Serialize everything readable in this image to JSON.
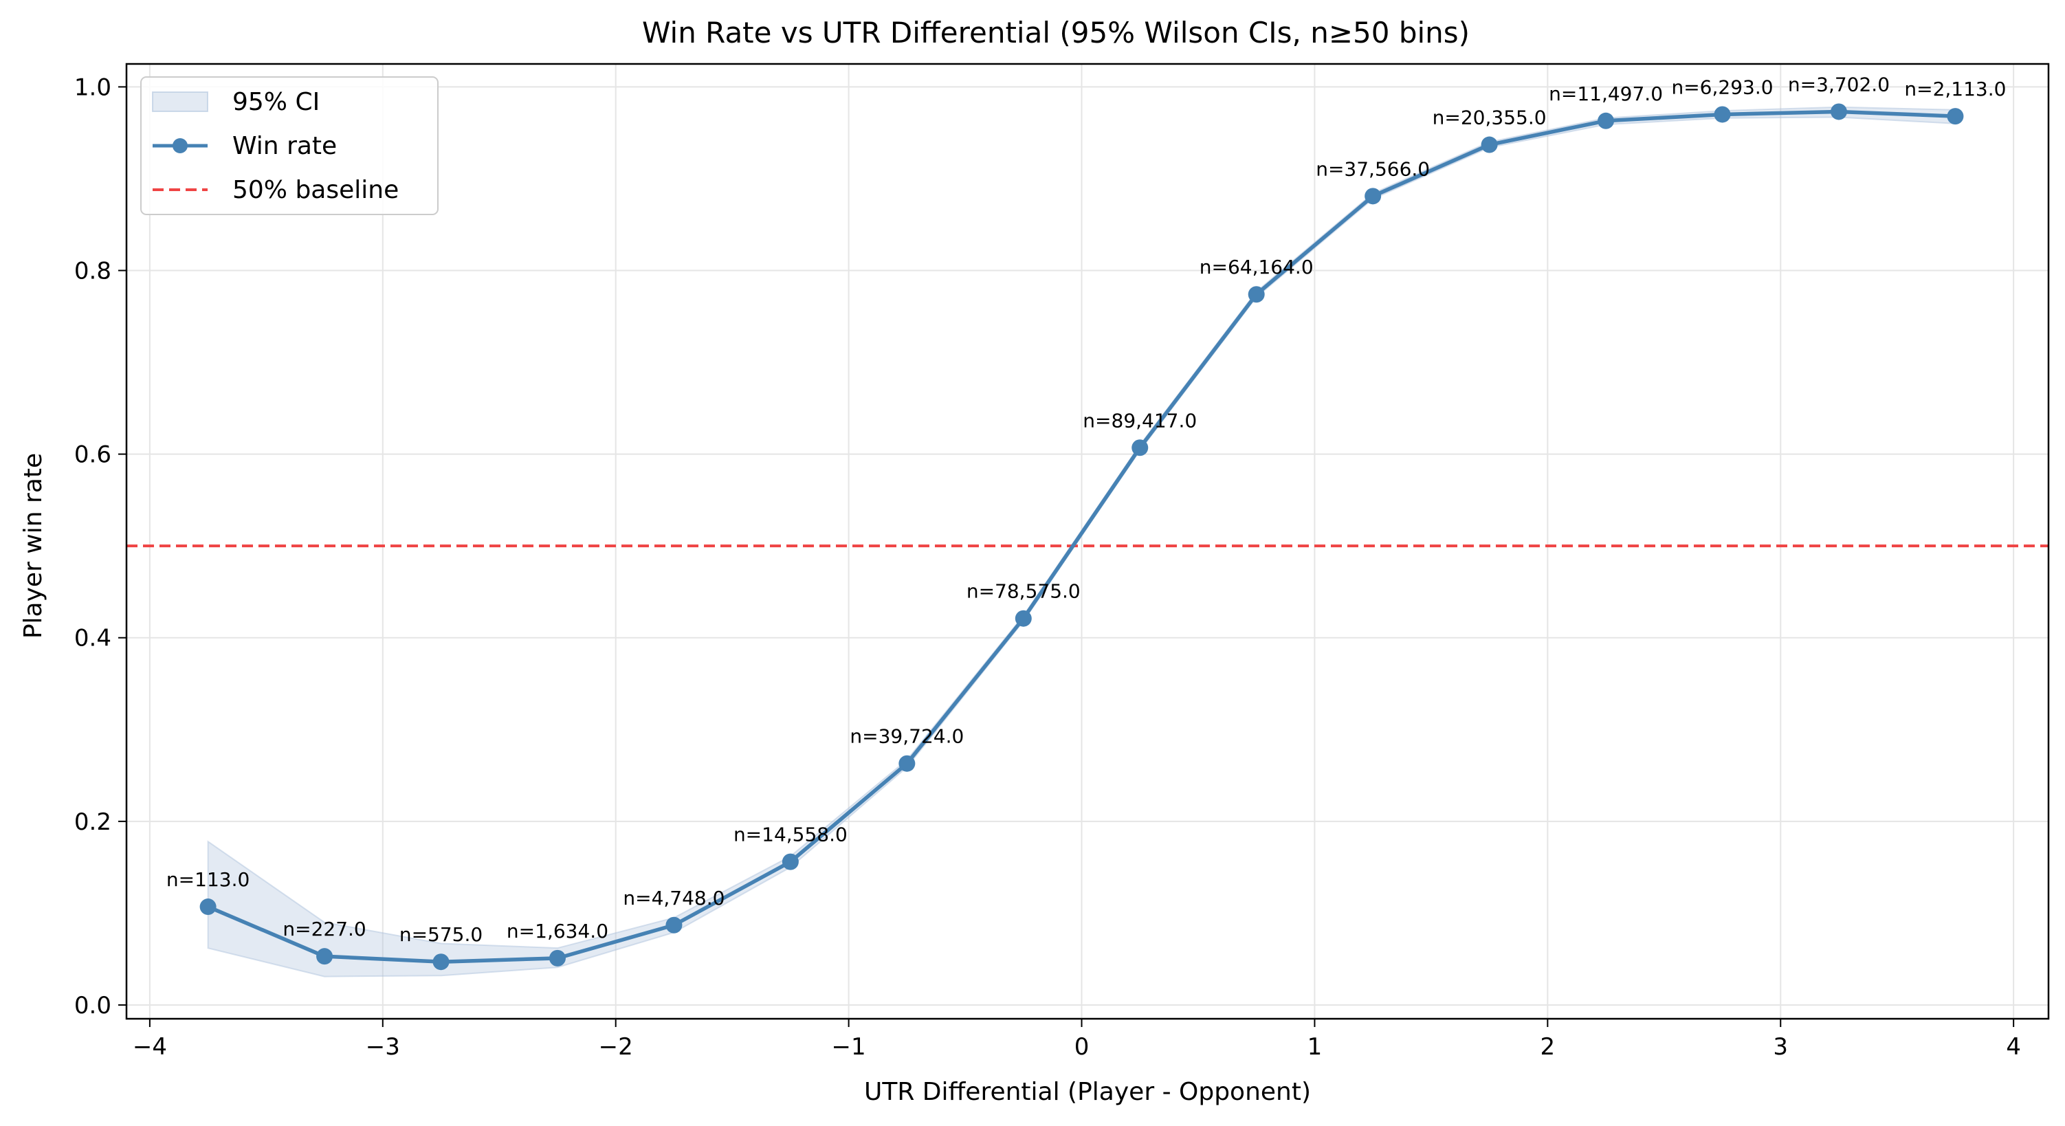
{
  "chart_data": {
    "type": "line",
    "title": "Win Rate vs UTR Differential (95% Wilson CIs, n≥50 bins)",
    "xlabel": "UTR Differential (Player - Opponent)",
    "ylabel": "Player win rate",
    "xlim": [
      -4.1,
      4.15
    ],
    "ylim": [
      -0.015,
      1.025
    ],
    "grid": true,
    "legend_position": "top-left",
    "x_ticks": [
      {
        "value": -4,
        "label": "−4"
      },
      {
        "value": -3,
        "label": "−3"
      },
      {
        "value": -2,
        "label": "−2"
      },
      {
        "value": -1,
        "label": "−1"
      },
      {
        "value": 0,
        "label": "0"
      },
      {
        "value": 1,
        "label": "1"
      },
      {
        "value": 2,
        "label": "2"
      },
      {
        "value": 3,
        "label": "3"
      },
      {
        "value": 4,
        "label": "4"
      }
    ],
    "y_ticks": [
      {
        "value": 0.0,
        "label": "0.0"
      },
      {
        "value": 0.2,
        "label": "0.2"
      },
      {
        "value": 0.4,
        "label": "0.4"
      },
      {
        "value": 0.6,
        "label": "0.6"
      },
      {
        "value": 0.8,
        "label": "0.8"
      },
      {
        "value": 1.0,
        "label": "1.0"
      }
    ],
    "colors": {
      "line": "#4682b4",
      "ci_fill": "#b0c4de",
      "baseline": "#ef4444",
      "grid": "#e5e5e5"
    },
    "baseline": {
      "y": 0.5,
      "name": "50% baseline"
    },
    "series": [
      {
        "name": "Win rate",
        "points": [
          {
            "x": -3.75,
            "y": 0.107,
            "lo": 0.062,
            "hi": 0.178,
            "label": "n=113.0"
          },
          {
            "x": -3.25,
            "y": 0.053,
            "lo": 0.031,
            "hi": 0.09,
            "label": "n=227.0"
          },
          {
            "x": -2.75,
            "y": 0.047,
            "lo": 0.032,
            "hi": 0.067,
            "label": "n=575.0"
          },
          {
            "x": -2.25,
            "y": 0.051,
            "lo": 0.041,
            "hi": 0.062,
            "label": "n=1,634.0"
          },
          {
            "x": -1.75,
            "y": 0.087,
            "lo": 0.079,
            "hi": 0.095,
            "label": "n=4,748.0"
          },
          {
            "x": -1.25,
            "y": 0.156,
            "lo": 0.15,
            "hi": 0.162,
            "label": "n=14,558.0"
          },
          {
            "x": -0.75,
            "y": 0.263,
            "lo": 0.259,
            "hi": 0.267,
            "label": "n=39,724.0"
          },
          {
            "x": -0.25,
            "y": 0.421,
            "lo": 0.418,
            "hi": 0.424,
            "label": "n=78,575.0"
          },
          {
            "x": 0.25,
            "y": 0.607,
            "lo": 0.604,
            "hi": 0.61,
            "label": "n=89,417.0"
          },
          {
            "x": 0.75,
            "y": 0.774,
            "lo": 0.771,
            "hi": 0.777,
            "label": "n=64,164.0"
          },
          {
            "x": 1.25,
            "y": 0.881,
            "lo": 0.878,
            "hi": 0.884,
            "label": "n=37,566.0"
          },
          {
            "x": 1.75,
            "y": 0.937,
            "lo": 0.934,
            "hi": 0.94,
            "label": "n=20,355.0"
          },
          {
            "x": 2.25,
            "y": 0.963,
            "lo": 0.959,
            "hi": 0.966,
            "label": "n=11,497.0"
          },
          {
            "x": 2.75,
            "y": 0.97,
            "lo": 0.966,
            "hi": 0.974,
            "label": "n=6,293.0"
          },
          {
            "x": 3.25,
            "y": 0.973,
            "lo": 0.967,
            "hi": 0.978,
            "label": "n=3,702.0"
          },
          {
            "x": 3.75,
            "y": 0.968,
            "lo": 0.96,
            "hi": 0.975,
            "label": "n=2,113.0"
          }
        ]
      }
    ],
    "legend": [
      {
        "key": "ci",
        "label": "95% CI"
      },
      {
        "key": "line",
        "label": "Win rate"
      },
      {
        "key": "baseline",
        "label": "50% baseline"
      }
    ]
  }
}
